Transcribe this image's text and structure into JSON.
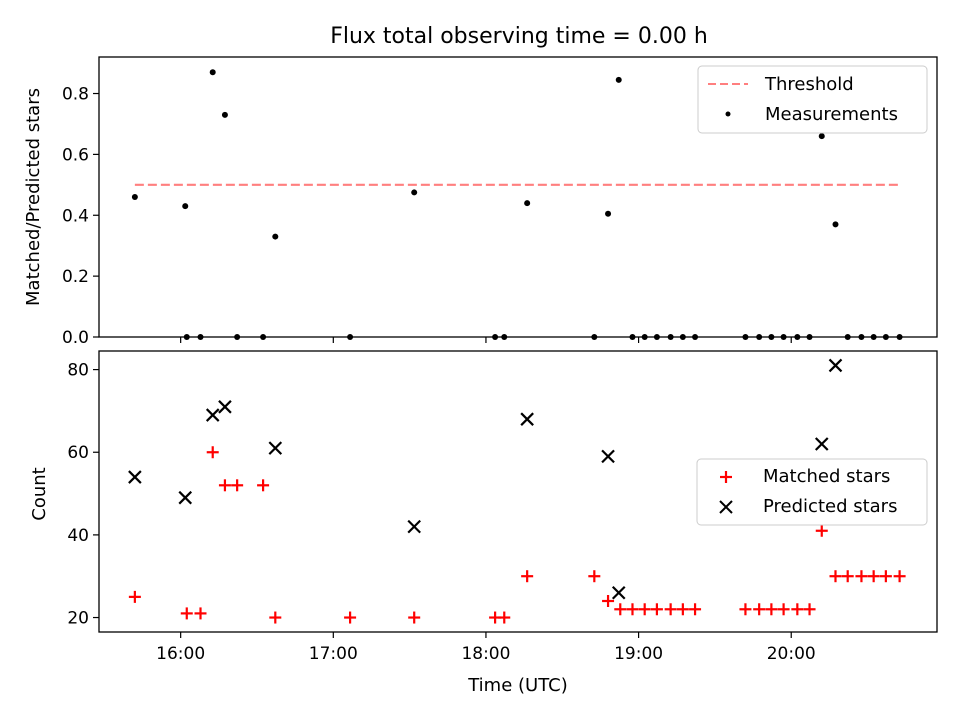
{
  "chart_data": [
    {
      "type": "scatter",
      "title": "Flux total observing time = 0.00 h",
      "xlabel": "",
      "ylabel": "Matched/Predicted stars",
      "ylim": [
        0,
        0.92
      ],
      "yticks": [
        "0.0",
        "0.2",
        "0.4",
        "0.6",
        "0.8"
      ],
      "yticks_values": [
        0,
        0.2,
        0.4,
        0.6,
        0.8
      ],
      "legend_position": "upper-right",
      "threshold": {
        "name": "Threshold",
        "value": 0.5,
        "x_start": 15.7,
        "x_end": 20.7,
        "color": "#ff7f7f"
      },
      "series": [
        {
          "name": "Measurements",
          "color": "#000000",
          "marker": "dot",
          "x": [
            15.7,
            16.03,
            16.21,
            16.29,
            16.62,
            17.53,
            18.27,
            18.8,
            18.87,
            20.2,
            20.29,
            16.04,
            16.13,
            16.37,
            16.54,
            17.11,
            18.06,
            18.12,
            18.71,
            18.96,
            19.04,
            19.12,
            19.21,
            19.29,
            19.37,
            19.7,
            19.79,
            19.87,
            19.95,
            20.04,
            20.12,
            20.37,
            20.46,
            20.54,
            20.62,
            20.71
          ],
          "y": [
            0.46,
            0.43,
            0.87,
            0.73,
            0.33,
            0.475,
            0.44,
            0.405,
            0.845,
            0.66,
            0.37,
            0,
            0,
            0,
            0,
            0,
            0,
            0,
            0,
            0,
            0,
            0,
            0,
            0,
            0,
            0,
            0,
            0,
            0,
            0,
            0,
            0,
            0,
            0,
            0,
            0
          ]
        }
      ]
    },
    {
      "type": "scatter",
      "title": "",
      "xlabel": "Time (UTC)",
      "ylabel": "Count",
      "ylim": [
        16.5,
        84.5
      ],
      "yticks": [
        "20",
        "40",
        "60",
        "80"
      ],
      "yticks_values": [
        20,
        40,
        60,
        80
      ],
      "xlim": [
        15.465,
        20.955
      ],
      "xticks": [
        "16:00",
        "17:00",
        "18:00",
        "19:00",
        "20:00"
      ],
      "xticks_values": [
        16,
        17,
        18,
        19,
        20
      ],
      "legend_position": "center-right",
      "series": [
        {
          "name": "Matched stars",
          "color": "#ff0000",
          "marker": "plus",
          "x": [
            15.7,
            16.04,
            16.13,
            16.21,
            16.29,
            16.37,
            16.54,
            16.62,
            17.11,
            17.53,
            18.06,
            18.12,
            18.27,
            18.71,
            18.8,
            18.88,
            18.96,
            19.04,
            19.12,
            19.21,
            19.29,
            19.37,
            19.7,
            19.79,
            19.87,
            19.95,
            20.04,
            20.12,
            20.2,
            20.29,
            20.37,
            20.46,
            20.54,
            20.62,
            20.71
          ],
          "y": [
            25,
            21,
            21,
            60,
            52,
            52,
            52,
            20,
            20,
            20,
            20,
            20,
            30,
            30,
            24,
            22,
            22,
            22,
            22,
            22,
            22,
            22,
            22,
            22,
            22,
            22,
            22,
            22,
            41,
            30,
            30,
            30,
            30,
            30,
            30
          ]
        },
        {
          "name": "Predicted stars",
          "color": "#000000",
          "marker": "x",
          "x": [
            15.7,
            16.03,
            16.21,
            16.29,
            16.62,
            17.53,
            18.27,
            18.8,
            18.87,
            20.2,
            20.29
          ],
          "y": [
            54,
            49,
            69,
            71,
            61,
            42,
            68,
            59,
            26,
            62,
            81
          ]
        }
      ]
    }
  ]
}
